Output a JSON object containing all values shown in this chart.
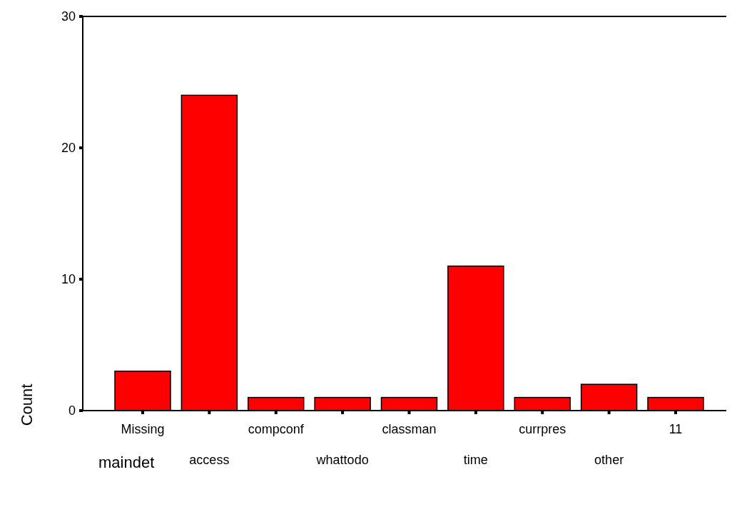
{
  "chart_data": {
    "type": "bar",
    "xlabel": "maindet",
    "ylabel": "Count",
    "categories": [
      "Missing",
      "access",
      "compconf",
      "whattodo",
      "classman",
      "time",
      "currpres",
      "other",
      "11"
    ],
    "values": [
      3,
      24,
      1,
      1,
      1,
      11,
      1,
      2,
      1
    ],
    "color": "#ff0000",
    "ylim": [
      0,
      30
    ],
    "yticks": [
      0,
      10,
      20,
      30
    ],
    "grid": false
  }
}
